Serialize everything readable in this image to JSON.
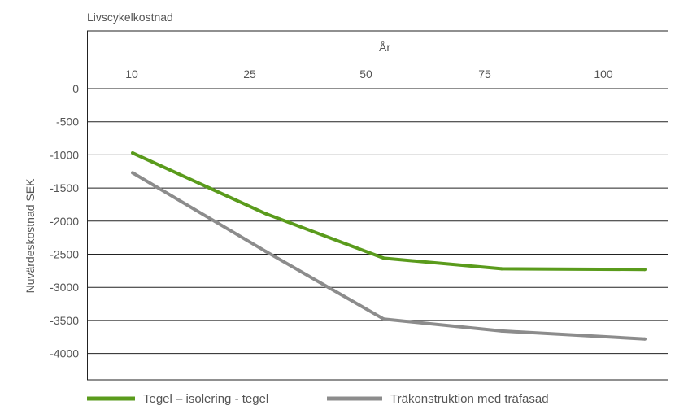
{
  "chart_data": {
    "type": "line",
    "title": "Livscykelkostnad",
    "xlabel": "År",
    "ylabel": "Nuvärdeskostnad SEK",
    "x_axis_position": "top",
    "categories": [
      "10",
      "25",
      "50",
      "75",
      "100"
    ],
    "ylim": [
      -4000,
      0
    ],
    "yticks": [
      0,
      -500,
      -1000,
      -1500,
      -2000,
      -2500,
      -3000,
      -3500,
      -4000
    ],
    "grid": true,
    "legend": "bottom",
    "series": [
      {
        "name": "Tegel – isolering - tegel",
        "color": "#5a9b1c",
        "values": [
          -970,
          -1890,
          -2560,
          -2720,
          -2730
        ]
      },
      {
        "name": "Träkonstruktion med träfasad",
        "color": "#8c8c8c",
        "values": [
          -1270,
          -2460,
          -3480,
          -3660,
          -3780
        ]
      }
    ]
  }
}
